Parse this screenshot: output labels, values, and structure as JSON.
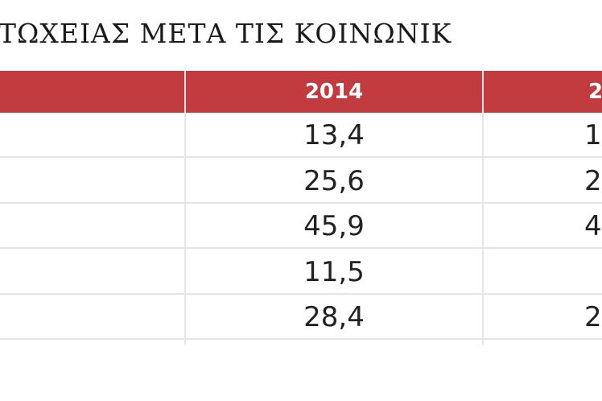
{
  "title": "ΤΩΧΕΙΑΣ ΜΕΤΑ ΤΙΣ ΚΟΙΝΩΝΙΚ",
  "table": {
    "header": [
      "2014",
      "2"
    ],
    "rows": [
      [
        "13,4",
        "1"
      ],
      [
        "25,6",
        "2"
      ],
      [
        "45,9",
        "4"
      ],
      [
        "11,5"
      ],
      [
        "28,4",
        "2"
      ]
    ]
  }
}
